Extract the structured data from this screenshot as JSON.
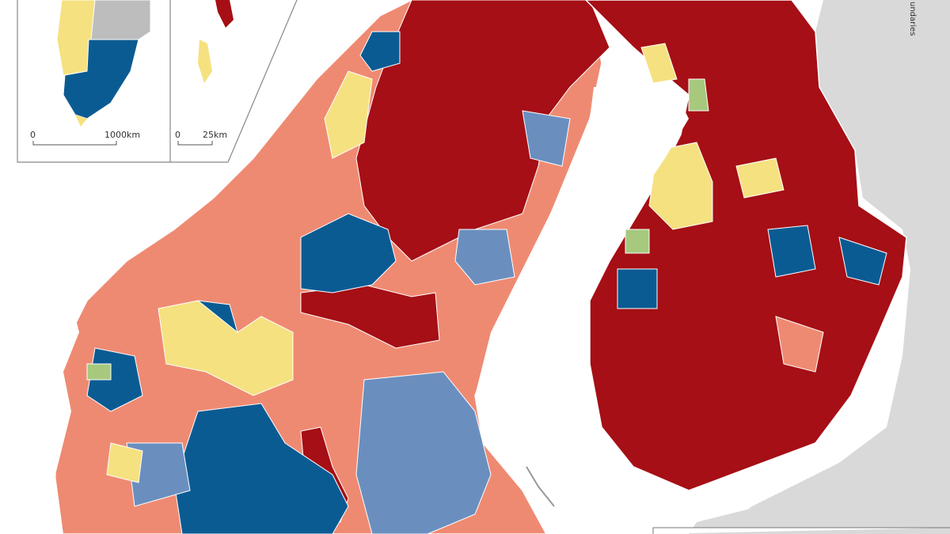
{
  "insets": [
    {
      "scale": {
        "start": "0",
        "end": "1000km"
      }
    },
    {
      "scale": {
        "start": "0",
        "end": "25km"
      }
    }
  ],
  "side_label": "undaries"
}
